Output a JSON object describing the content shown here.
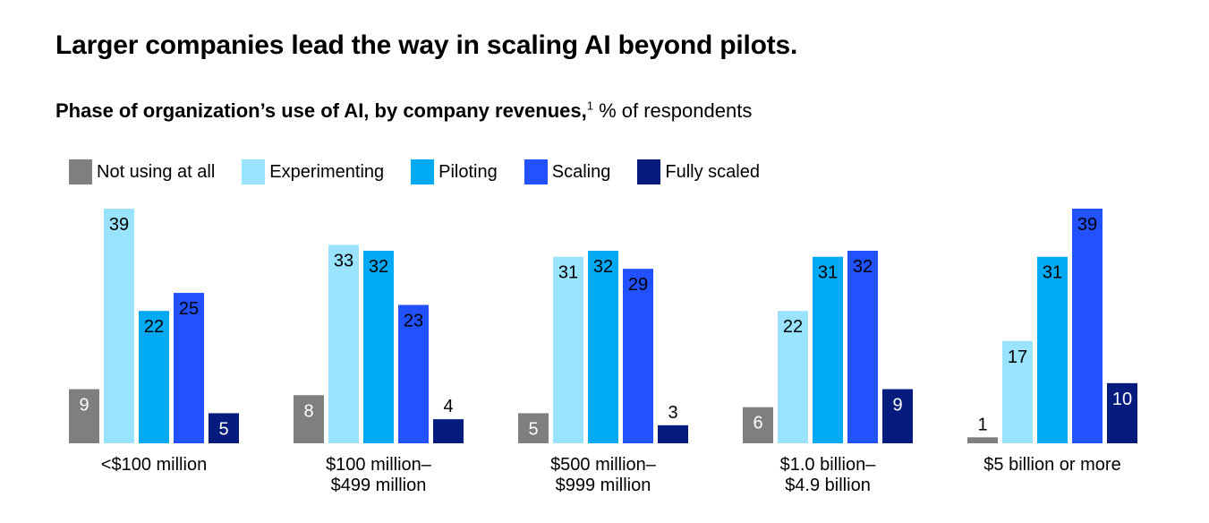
{
  "title": "Larger companies lead the way in scaling AI beyond pilots.",
  "subtitle": {
    "bold": "Phase of organization’s use of AI, by company revenues,",
    "footnote": "1",
    "rest": " % of respondents"
  },
  "chart_data": {
    "type": "bar",
    "categories": [
      [
        "<$100 million"
      ],
      [
        "$100 million–",
        "$499 million"
      ],
      [
        "$500 million–",
        "$999 million"
      ],
      [
        "$1.0 billion–",
        "$4.9 billion"
      ],
      [
        "$5 billion or more"
      ]
    ],
    "series": [
      {
        "name": "Not using at all",
        "color": "#7f7f7f",
        "values": [
          9,
          8,
          5,
          6,
          1
        ]
      },
      {
        "name": "Experimenting",
        "color": "#99e3fe",
        "values": [
          39,
          33,
          31,
          22,
          17
        ]
      },
      {
        "name": "Piloting",
        "color": "#00a9f4",
        "values": [
          22,
          32,
          32,
          31,
          31
        ]
      },
      {
        "name": "Scaling",
        "color": "#2251ff",
        "values": [
          25,
          23,
          29,
          32,
          39
        ]
      },
      {
        "name": "Fully scaled",
        "color": "#051c7e",
        "values": [
          5,
          4,
          3,
          9,
          10
        ]
      }
    ],
    "ylim": [
      0,
      39
    ],
    "grid": false,
    "legend_position": "top-left"
  }
}
